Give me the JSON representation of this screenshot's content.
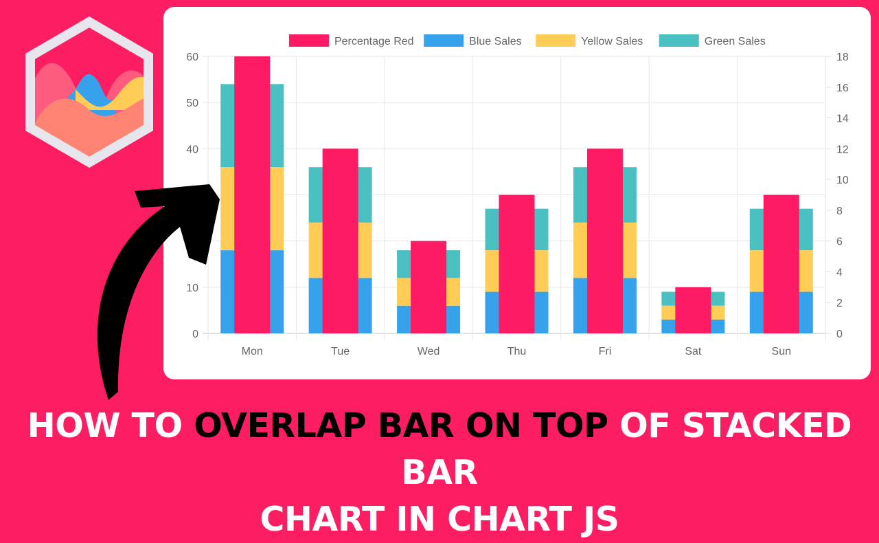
{
  "title": {
    "part1": "HOW TO ",
    "highlight": "OVERLAP BAR ON TOP",
    "part2": " OF STACKED BAR",
    "line2": "CHART IN CHART JS"
  },
  "logo": {
    "icon": "chartjs-hexagon-logo-icon"
  },
  "arrow": {
    "icon": "curved-arrow-icon"
  },
  "colors": {
    "background": "#fd1d62",
    "red": "#ff1a64",
    "blue": "#36a2eb",
    "yellow": "#ffcd56",
    "green": "#4bc0c0"
  },
  "chart_data": {
    "type": "bar",
    "categories": [
      "Mon",
      "Tue",
      "Wed",
      "Thu",
      "Fri",
      "Sat",
      "Sun"
    ],
    "legend_position": "top",
    "grid": true,
    "y_left": {
      "min": 0,
      "max": 60,
      "ticks": [
        0,
        10,
        20,
        30,
        40,
        50,
        60
      ],
      "stacked": true
    },
    "y_right": {
      "min": 0,
      "max": 18,
      "ticks": [
        0,
        2,
        4,
        6,
        8,
        10,
        12,
        14,
        16,
        18
      ]
    },
    "series": [
      {
        "name": "Percentage Red",
        "color": "#ff1a64",
        "axis": "right",
        "stacked": false,
        "values": [
          18,
          12,
          6,
          9,
          12,
          3,
          9
        ]
      },
      {
        "name": "Blue Sales",
        "color": "#36a2eb",
        "axis": "left",
        "stacked": true,
        "values": [
          18,
          12,
          6,
          9,
          12,
          3,
          9
        ]
      },
      {
        "name": "Yellow Sales",
        "color": "#ffcd56",
        "axis": "left",
        "stacked": true,
        "values": [
          18,
          12,
          6,
          9,
          12,
          3,
          9
        ]
      },
      {
        "name": "Green Sales",
        "color": "#4bc0c0",
        "axis": "left",
        "stacked": true,
        "values": [
          18,
          12,
          6,
          9,
          12,
          3,
          9
        ]
      }
    ]
  }
}
